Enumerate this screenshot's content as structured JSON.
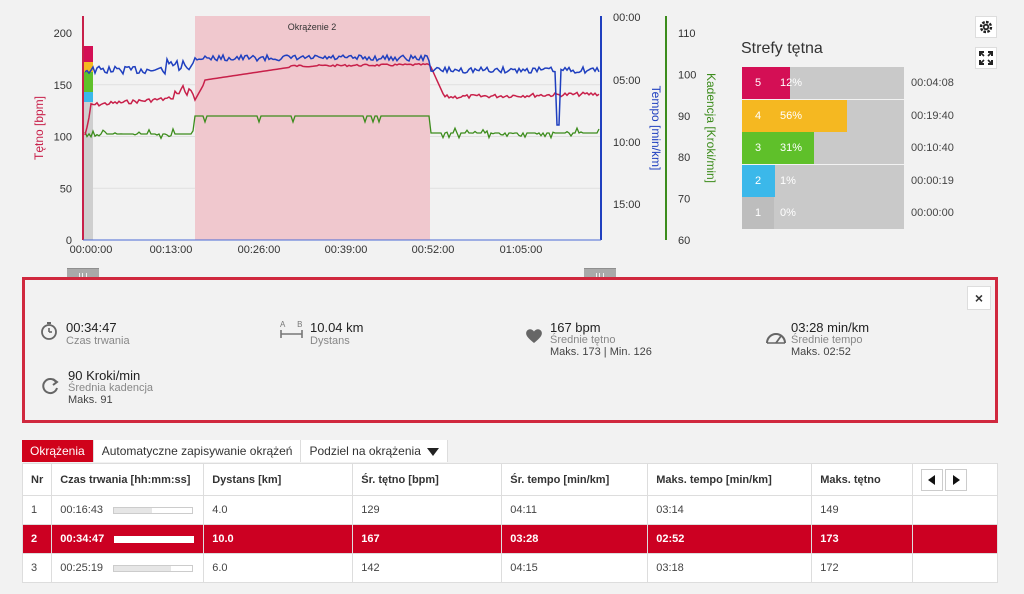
{
  "chart": {
    "lap_label": "Okrążenie 2",
    "y_left_label": "Tętno [bpm]",
    "y_tempo_label": "Tempo [min/km]",
    "y_cadence_label": "Kadencja [Kroki/min]",
    "hr_ticks": [
      "200",
      "150",
      "100",
      "50",
      "0"
    ],
    "tempo_ticks": [
      "00:00",
      "05:00",
      "10:00",
      "15:00"
    ],
    "cadence_ticks": [
      "110",
      "100",
      "90",
      "80",
      "70",
      "60"
    ],
    "x_ticks": [
      "00:00:00",
      "00:13:00",
      "00:26:00",
      "00:39:00",
      "00:52:00",
      "01:05:00"
    ],
    "colors": {
      "hr": "#c8204a",
      "tempo": "#1f3fbf",
      "cadence": "#3c8c1c",
      "lap": "#f0c8ce"
    }
  },
  "tools": {
    "settings_icon": "gear-icon",
    "fullscreen_icon": "expand-icon"
  },
  "zones": {
    "title": "Strefy tętna",
    "items": [
      {
        "num": "5",
        "pct": "12%",
        "time": "00:04:08",
        "color": "#d40f55",
        "fraction": 0.12
      },
      {
        "num": "4",
        "pct": "56%",
        "time": "00:19:40",
        "color": "#f5b821",
        "fraction": 0.56
      },
      {
        "num": "3",
        "pct": "31%",
        "time": "00:10:40",
        "color": "#5fc02a",
        "fraction": 0.31
      },
      {
        "num": "2",
        "pct": "1%",
        "time": "00:00:19",
        "color": "#3bb8ea",
        "fraction": 0.01
      },
      {
        "num": "1",
        "pct": "0%",
        "time": "00:00:00",
        "color": "#bdbdbd",
        "fraction": 0.0
      }
    ]
  },
  "summary": {
    "close": "×",
    "duration": {
      "value": "00:34:47",
      "label": "Czas trwania"
    },
    "distance": {
      "value": "10.04 km",
      "label": "Dystans",
      "icon_letters": "A B"
    },
    "hr": {
      "value": "167 bpm",
      "label": "Średnie tętno",
      "sub": "Maks. 173  |  Min. 126"
    },
    "tempo": {
      "value": "03:28 min/km",
      "label": "Średnie tempo",
      "sub": "Maks. 02:52"
    },
    "cadence": {
      "value": "90 Kroki/min",
      "label": "Średnia kadencja",
      "sub": "Maks. 91"
    }
  },
  "tabs": [
    {
      "label": "Okrążenia",
      "active": true
    },
    {
      "label": "Automatyczne zapisywanie okrążeń",
      "active": false
    },
    {
      "label": "Podziel na okrążenia",
      "active": false
    }
  ],
  "table": {
    "headers": [
      "Nr",
      "Czas trwania [hh:mm:ss]",
      "Dystans [km]",
      "Śr. tętno [bpm]",
      "Śr. tempo [min/km]",
      "Maks. tempo [min/km]",
      "Maks. tętno"
    ],
    "rows": [
      {
        "nr": "1",
        "duration": "00:16:43",
        "bar": 0.48,
        "distance": "4.0",
        "avg_hr": "129",
        "avg_tempo": "04:11",
        "max_tempo": "03:14",
        "max_hr": "149"
      },
      {
        "nr": "2",
        "duration": "00:34:47",
        "bar": 1.0,
        "distance": "10.0",
        "avg_hr": "167",
        "avg_tempo": "03:28",
        "max_tempo": "02:52",
        "max_hr": "173"
      },
      {
        "nr": "3",
        "duration": "00:25:19",
        "bar": 0.73,
        "distance": "6.0",
        "avg_hr": "142",
        "avg_tempo": "04:15",
        "max_tempo": "03:18",
        "max_hr": "172"
      }
    ]
  }
}
